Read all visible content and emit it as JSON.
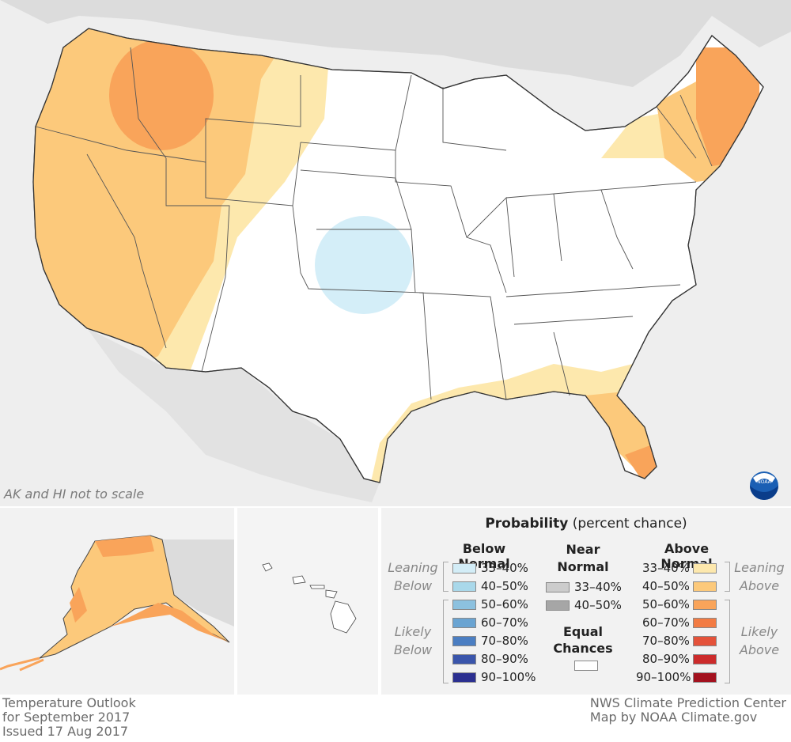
{
  "map": {
    "scale_note": "AK and HI not to scale",
    "colors": {
      "land": "#ffffff",
      "background": "#eeeeee",
      "border": "#444444",
      "above_33_40": "#fde8ad",
      "above_40_50": "#fcc97b",
      "above_50_60": "#f9a45a",
      "above_60_70": "#f07a3e",
      "below_33_40": "#d4eef8"
    },
    "logo_icon": "noaa-logo-icon"
  },
  "legend": {
    "title_bold": "Probability",
    "title_rest": " (percent chance)",
    "below_head": "Below Normal",
    "near_head_1": "Near",
    "near_head_2": "Normal",
    "above_head": "Above Normal",
    "equal_1": "Equal",
    "equal_2": "Chances",
    "leaning_below_1": "Leaning",
    "leaning_below_2": "Below",
    "likely_below_1": "Likely",
    "likely_below_2": "Below",
    "leaning_above_1": "Leaning",
    "leaning_above_2": "Above",
    "likely_above_1": "Likely",
    "likely_above_2": "Above",
    "below": [
      {
        "label": "33–40%",
        "color": "#d3edf7"
      },
      {
        "label": "40–50%",
        "color": "#a9d8ea"
      },
      {
        "label": "50–60%",
        "color": "#8cc1df"
      },
      {
        "label": "60–70%",
        "color": "#6aa4d2"
      },
      {
        "label": "70–80%",
        "color": "#4b7ec2"
      },
      {
        "label": "80–90%",
        "color": "#3a55ab"
      },
      {
        "label": "90–100%",
        "color": "#2b2f90"
      }
    ],
    "near": [
      {
        "label": "33–40%",
        "color": "#cccccc"
      },
      {
        "label": "40–50%",
        "color": "#a6a6a6"
      }
    ],
    "above": [
      {
        "label": "33–40%",
        "color": "#fde8ad"
      },
      {
        "label": "40–50%",
        "color": "#fcc97b"
      },
      {
        "label": "50–60%",
        "color": "#f9a45a"
      },
      {
        "label": "60–70%",
        "color": "#f27b43"
      },
      {
        "label": "70–80%",
        "color": "#e4523a"
      },
      {
        "label": "80–90%",
        "color": "#cc2b2b"
      },
      {
        "label": "90–100%",
        "color": "#a3111e"
      }
    ]
  },
  "footer": {
    "left_1": "Temperature Outlook",
    "left_2": "for September 2017",
    "left_3": "Issued 17 Aug 2017",
    "right_1": "NWS Climate Prediction Center",
    "right_2": "Map by NOAA Climate.gov"
  }
}
